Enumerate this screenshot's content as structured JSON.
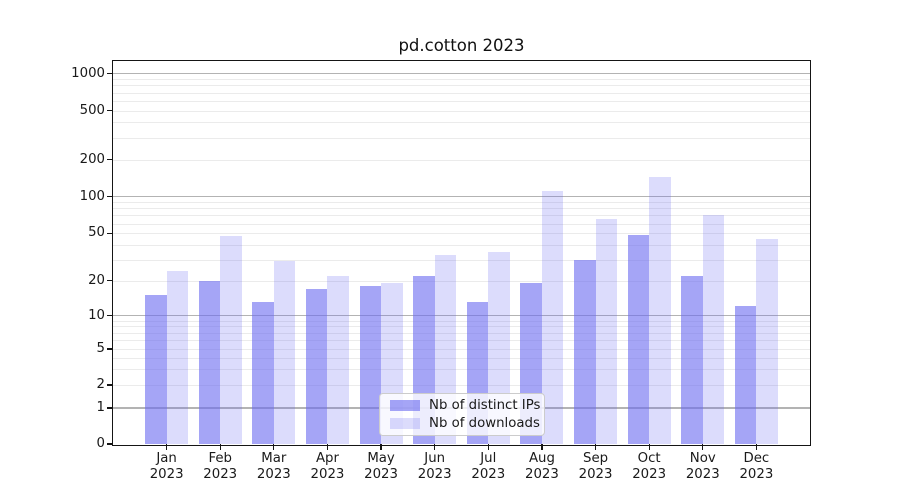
{
  "chart_data": {
    "type": "bar",
    "title": "pd.cotton 2023",
    "categories": [
      "Jan",
      "Feb",
      "Mar",
      "Apr",
      "May",
      "Jun",
      "Jul",
      "Aug",
      "Sep",
      "Oct",
      "Nov",
      "Dec"
    ],
    "x_tick_year": "2023",
    "series": [
      {
        "name": "Nb of distinct IPs",
        "color": "rgba(105,105,240,0.6)",
        "values": [
          15,
          20,
          13,
          17,
          18,
          22,
          13,
          19,
          30,
          48,
          22,
          12
        ]
      },
      {
        "name": "Nb of downloads",
        "color": "rgba(105,105,240,0.23)",
        "values": [
          24,
          47,
          29,
          22,
          19,
          33,
          35,
          110,
          65,
          145,
          71,
          45
        ]
      }
    ],
    "xlabel": "",
    "ylabel": "",
    "yticks": [
      0,
      1,
      2,
      5,
      10,
      20,
      50,
      100,
      200,
      500,
      1000
    ],
    "yscale": "log-like with zero baseline",
    "ylim": [
      0,
      1250
    ],
    "grid": true,
    "legend_position": "inside lower-center",
    "colors": {
      "major_grid": "#b3b3b3",
      "minor_grid": "#ebebeb",
      "axis": "#151515",
      "text": "#1a1a1a",
      "legend_border": "#cccccc",
      "legend_background": "rgba(255,255,255,0.8)"
    }
  }
}
